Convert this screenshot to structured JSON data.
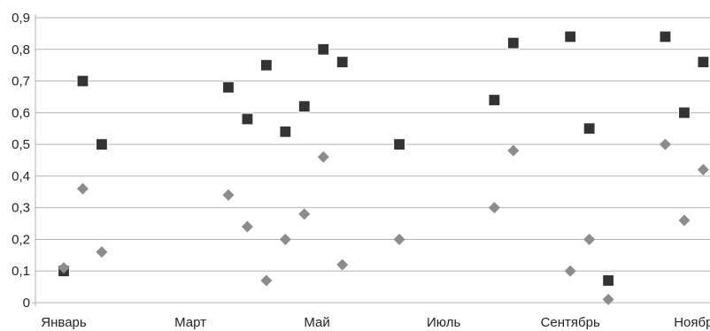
{
  "chart_data": {
    "type": "scatter",
    "title": "",
    "xlabel": "",
    "ylabel": "",
    "ylim": [
      0,
      0.9
    ],
    "y_ticks": [
      "0",
      "0,1",
      "0,2",
      "0,3",
      "0,4",
      "0,5",
      "0,6",
      "0,7",
      "0,8",
      "0,9"
    ],
    "x_ticks": [
      {
        "label": "Январь",
        "x": 0
      },
      {
        "label": "Март",
        "x": 2
      },
      {
        "label": "Май",
        "x": 4
      },
      {
        "label": "Июль",
        "x": 6
      },
      {
        "label": "Сентябрь",
        "x": 8
      },
      {
        "label": "Ноябрь",
        "x": 10
      }
    ],
    "xlim": [
      0,
      10.5
    ],
    "grid": {
      "horizontal": true,
      "vertical": false
    },
    "legend": "none",
    "series": [
      {
        "marker": "square",
        "color": "#333333",
        "points": [
          {
            "x": 0.0,
            "y": 0.1
          },
          {
            "x": 0.3,
            "y": 0.7
          },
          {
            "x": 0.6,
            "y": 0.5
          },
          {
            "x": 2.6,
            "y": 0.68
          },
          {
            "x": 2.9,
            "y": 0.58
          },
          {
            "x": 3.2,
            "y": 0.75
          },
          {
            "x": 3.5,
            "y": 0.54
          },
          {
            "x": 3.8,
            "y": 0.62
          },
          {
            "x": 4.1,
            "y": 0.8
          },
          {
            "x": 4.4,
            "y": 0.76
          },
          {
            "x": 5.3,
            "y": 0.5
          },
          {
            "x": 6.8,
            "y": 0.64
          },
          {
            "x": 7.1,
            "y": 0.82
          },
          {
            "x": 8.0,
            "y": 0.84
          },
          {
            "x": 8.3,
            "y": 0.55
          },
          {
            "x": 8.6,
            "y": 0.07
          },
          {
            "x": 9.5,
            "y": 0.84
          },
          {
            "x": 9.8,
            "y": 0.6
          },
          {
            "x": 10.1,
            "y": 0.76
          }
        ]
      },
      {
        "marker": "diamond",
        "color": "#8c8c8c",
        "points": [
          {
            "x": 0.0,
            "y": 0.11
          },
          {
            "x": 0.3,
            "y": 0.36
          },
          {
            "x": 0.6,
            "y": 0.16
          },
          {
            "x": 2.6,
            "y": 0.34
          },
          {
            "x": 2.9,
            "y": 0.24
          },
          {
            "x": 3.2,
            "y": 0.07
          },
          {
            "x": 3.5,
            "y": 0.2
          },
          {
            "x": 3.8,
            "y": 0.28
          },
          {
            "x": 4.1,
            "y": 0.46
          },
          {
            "x": 4.4,
            "y": 0.12
          },
          {
            "x": 5.3,
            "y": 0.2
          },
          {
            "x": 6.8,
            "y": 0.3
          },
          {
            "x": 7.1,
            "y": 0.48
          },
          {
            "x": 8.0,
            "y": 0.1
          },
          {
            "x": 8.3,
            "y": 0.2
          },
          {
            "x": 8.6,
            "y": 0.01
          },
          {
            "x": 9.5,
            "y": 0.5
          },
          {
            "x": 9.8,
            "y": 0.26
          },
          {
            "x": 10.1,
            "y": 0.42
          }
        ]
      }
    ]
  }
}
